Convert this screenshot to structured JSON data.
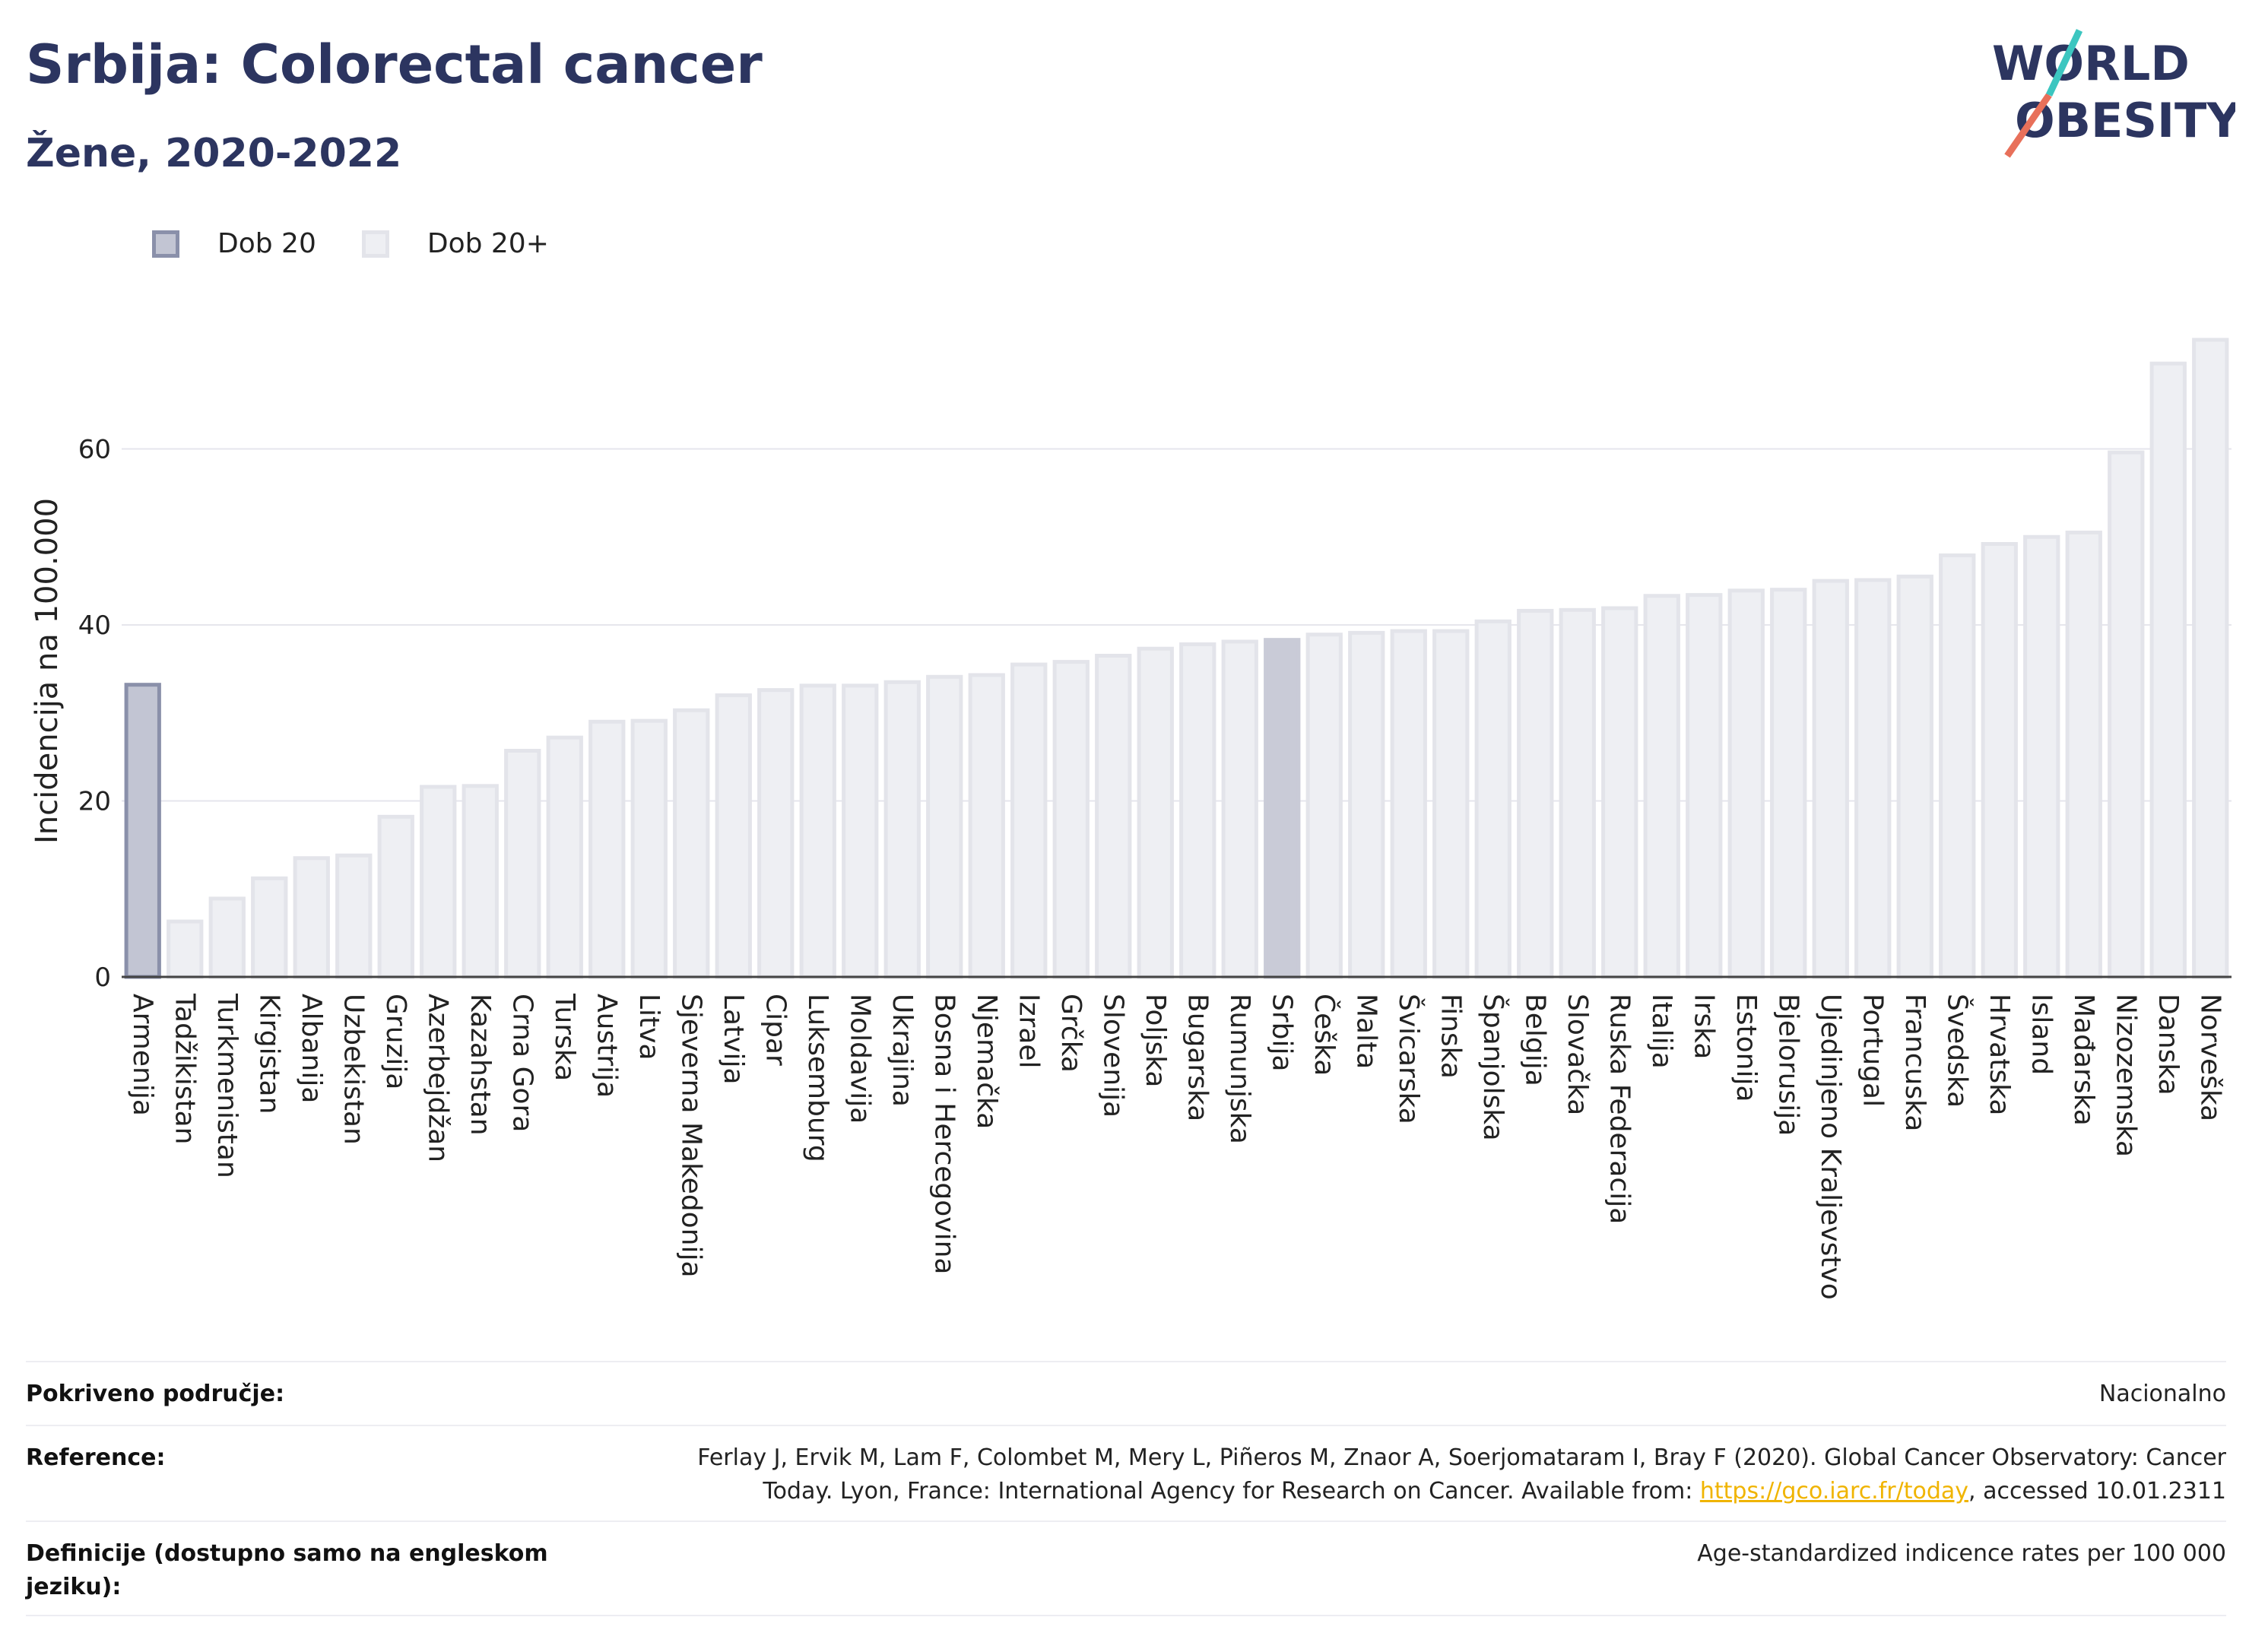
{
  "header": {
    "title": "Srbija: Colorectal cancer",
    "subtitle": "Žene, 2020-2022"
  },
  "logo": {
    "line1": "WORLD",
    "line2": "OBESITY",
    "accent_color": "#e8705a",
    "accent2_color": "#3cc6c0"
  },
  "legend": [
    {
      "label": "Dob 20",
      "color": "#8a90aa"
    },
    {
      "label": "Dob 20+",
      "color": "#e6e7ee"
    }
  ],
  "chart_data": {
    "type": "bar",
    "ylabel": "Incidencija na 100.000",
    "ylim": [
      0,
      73
    ],
    "yticks": [
      0,
      20,
      40,
      60
    ],
    "grid": true,
    "legend_position": "top-left",
    "categories": [
      "Armenija",
      "Tadžikistan",
      "Turkmenistan",
      "Kirgistan",
      "Albanija",
      "Uzbekistan",
      "Gruzija",
      "Azerbejdžan",
      "Kazahstan",
      "Crna Gora",
      "Turska",
      "Austrija",
      "Litva",
      "Sjeverna Makedonija",
      "Latvija",
      "Cipar",
      "Luksemburg",
      "Moldavija",
      "Ukrajina",
      "Bosna i Hercegovina",
      "Njemačka",
      "Izrael",
      "Grčka",
      "Slovenija",
      "Poljska",
      "Bugarska",
      "Rumunjska",
      "Srbija",
      "Češka",
      "Malta",
      "Švicarska",
      "Finska",
      "Španjolska",
      "Belgija",
      "Slovačka",
      "Ruska Federacija",
      "Italija",
      "Irska",
      "Estonija",
      "Bjelorusija",
      "Ujedinjeno Kraljevstvo",
      "Portugal",
      "Francuska",
      "Švedska",
      "Hrvatska",
      "Island",
      "Mađarska",
      "Nizozemska",
      "Danska",
      "Norveška"
    ],
    "values": [
      33.2,
      6.3,
      8.9,
      11.2,
      13.5,
      13.8,
      18.2,
      21.6,
      21.7,
      25.7,
      27.2,
      29.0,
      29.1,
      30.3,
      32.0,
      32.6,
      33.1,
      33.1,
      33.5,
      34.1,
      34.3,
      35.5,
      35.8,
      36.5,
      37.3,
      37.8,
      38.1,
      38.3,
      38.9,
      39.1,
      39.3,
      39.3,
      40.4,
      41.6,
      41.7,
      41.9,
      43.3,
      43.4,
      43.9,
      44.0,
      45.0,
      45.1,
      45.5,
      47.9,
      49.2,
      50.0,
      50.5,
      59.6,
      69.7,
      72.4
    ],
    "series_group": [
      "Dob 20",
      "Dob 20+",
      "Dob 20+",
      "Dob 20+",
      "Dob 20+",
      "Dob 20+",
      "Dob 20+",
      "Dob 20+",
      "Dob 20+",
      "Dob 20+",
      "Dob 20+",
      "Dob 20+",
      "Dob 20+",
      "Dob 20+",
      "Dob 20+",
      "Dob 20+",
      "Dob 20+",
      "Dob 20+",
      "Dob 20+",
      "Dob 20+",
      "Dob 20+",
      "Dob 20+",
      "Dob 20+",
      "Dob 20+",
      "Dob 20+",
      "Dob 20+",
      "Dob 20+",
      "Dob 20+",
      "Dob 20+",
      "Dob 20+",
      "Dob 20+",
      "Dob 20+",
      "Dob 20+",
      "Dob 20+",
      "Dob 20+",
      "Dob 20+",
      "Dob 20+",
      "Dob 20+",
      "Dob 20+",
      "Dob 20+",
      "Dob 20+",
      "Dob 20+",
      "Dob 20+",
      "Dob 20+",
      "Dob 20+",
      "Dob 20+",
      "Dob 20+",
      "Dob 20+",
      "Dob 20+",
      "Dob 20+"
    ],
    "highlight": "Srbija",
    "colors": {
      "dob20_fill": "#c2c5d3",
      "dob20_stroke": "#8a90aa",
      "dob20plus_fill": "#eeeff3",
      "dob20plus_stroke": "#e3e4ea",
      "highlight_fill": "#c9cbd7"
    }
  },
  "meta": {
    "coverage_label": "Pokriveno područje:",
    "coverage_value": "Nacionalno",
    "reference_label": "Reference:",
    "reference_text1": "Ferlay J, Ervik M, Lam F, Colombet M, Mery L, Piñeros M, Znaor A, Soerjomataram I, Bray F (2020). Global Cancer Observatory: Cancer Today. Lyon, France: International Agency for Research on Cancer. Available from: ",
    "reference_link": "https://gco.iarc.fr/today",
    "reference_text2": ", accessed 10.01.2311",
    "definitions_label": "Definicije (dostupno samo na engleskom jeziku):",
    "definitions_value": "Age-standardized indicence rates per 100 000"
  }
}
